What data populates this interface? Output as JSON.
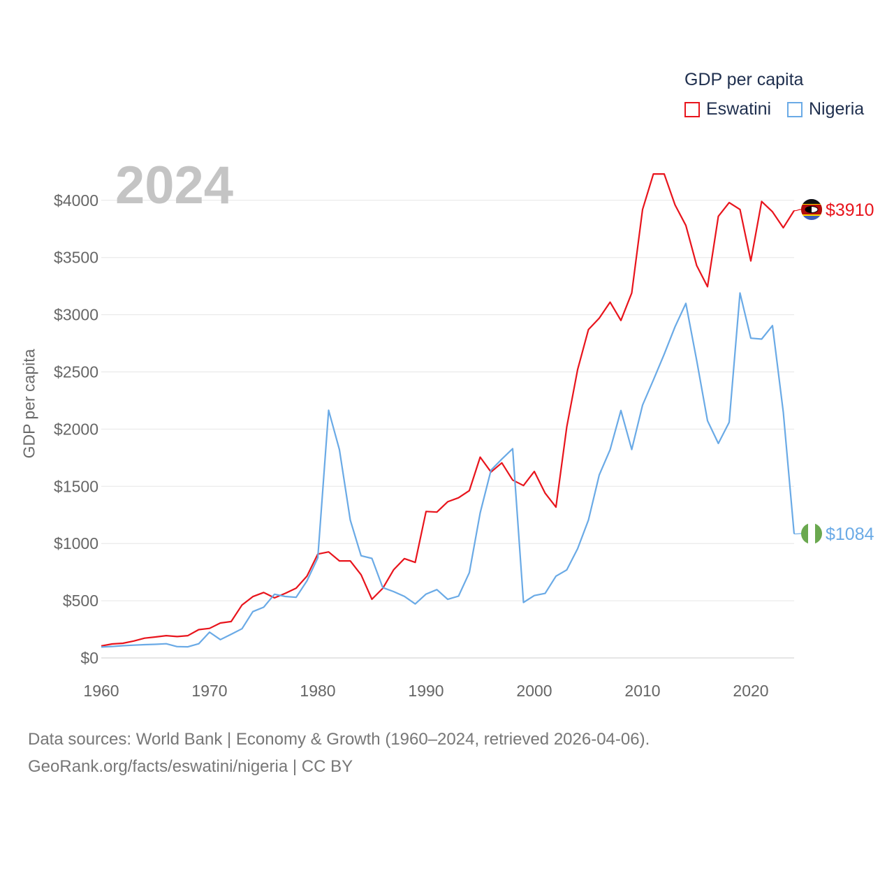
{
  "chart_data": {
    "type": "line",
    "title": "GDP per capita",
    "year_label": "2024",
    "ylabel": "GDP per capita",
    "xlabel": "",
    "xlim": [
      1960,
      2024
    ],
    "ylim": [
      0,
      4300
    ],
    "x_ticks": [
      1960,
      1970,
      1980,
      1990,
      2000,
      2010,
      2020
    ],
    "y_ticks": [
      0,
      500,
      1000,
      1500,
      2000,
      2500,
      3000,
      3500,
      4000
    ],
    "y_tick_labels": [
      "$0",
      "$500",
      "$1000",
      "$1500",
      "$2000",
      "$2500",
      "$3000",
      "$3500",
      "$4000"
    ],
    "legend_position": "top-right",
    "x": [
      1960,
      1961,
      1962,
      1963,
      1964,
      1965,
      1966,
      1967,
      1968,
      1969,
      1970,
      1971,
      1972,
      1973,
      1974,
      1975,
      1976,
      1977,
      1978,
      1979,
      1980,
      1981,
      1982,
      1983,
      1984,
      1985,
      1986,
      1987,
      1988,
      1989,
      1990,
      1991,
      1992,
      1993,
      1994,
      1995,
      1996,
      1997,
      1998,
      1999,
      2000,
      2001,
      2002,
      2003,
      2004,
      2005,
      2006,
      2007,
      2008,
      2009,
      2010,
      2011,
      2012,
      2013,
      2014,
      2015,
      2016,
      2017,
      2018,
      2019,
      2020,
      2021,
      2022,
      2023,
      2024
    ],
    "series": [
      {
        "name": "Eswatini",
        "color": "#e8141c",
        "end_label": "$3910",
        "values": [
          105,
          122,
          128,
          148,
          173,
          183,
          195,
          187,
          195,
          247,
          258,
          305,
          318,
          463,
          536,
          572,
          525,
          565,
          610,
          715,
          908,
          927,
          848,
          848,
          727,
          513,
          608,
          770,
          868,
          835,
          1280,
          1275,
          1365,
          1400,
          1463,
          1755,
          1625,
          1705,
          1555,
          1507,
          1630,
          1440,
          1318,
          2020,
          2520,
          2870,
          2970,
          3110,
          2950,
          3190,
          3920,
          4230,
          4230,
          3960,
          3780,
          3430,
          3245,
          3860,
          3980,
          3920,
          3470,
          3990,
          3900,
          3760,
          3910
        ]
      },
      {
        "name": "Nigeria",
        "color": "#6aaae6",
        "end_label": "$1084",
        "values": [
          95,
          100,
          107,
          112,
          116,
          119,
          124,
          99,
          97,
          124,
          225,
          160,
          207,
          255,
          405,
          443,
          557,
          537,
          530,
          674,
          875,
          2165,
          1820,
          1205,
          893,
          870,
          615,
          580,
          538,
          472,
          558,
          597,
          512,
          540,
          746,
          1268,
          1641,
          1738,
          1829,
          485,
          545,
          564,
          715,
          770,
          955,
          1205,
          1600,
          1820,
          2163,
          1822,
          2210,
          2430,
          2655,
          2895,
          3099,
          2600,
          2073,
          1875,
          2060,
          3190,
          2795,
          2787,
          2905,
          2148,
          1084
        ]
      }
    ]
  },
  "flags": {
    "eswatini": "eswatini-flag-icon",
    "nigeria": "nigeria-flag-icon"
  },
  "source": {
    "line1": "Data sources: World Bank | Economy & Growth (1960–2024, retrieved 2026-04-06).",
    "line2": "GeoRank.org/facts/eswatini/nigeria | CC BY"
  }
}
